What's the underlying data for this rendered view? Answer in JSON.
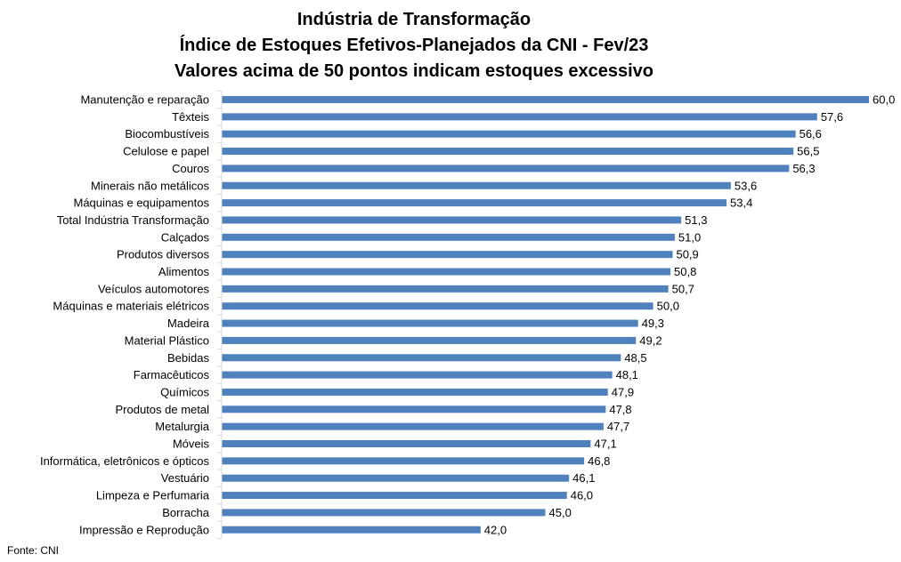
{
  "chart_data": {
    "type": "bar",
    "orientation": "horizontal",
    "title": [
      "Indústria de Transformação",
      "Índice de Estoques Efetivos-Planejados da CNI - Fev/23",
      "Valores acima de 50 pontos indicam estoques excessivo"
    ],
    "categories": [
      "Manutenção e reparação",
      "Têxteis",
      "Biocombustíveis",
      "Celulose e papel",
      "Couros",
      "Minerais não metálicos",
      "Máquinas e equipamentos",
      "Total Indústria Transformação",
      "Calçados",
      "Produtos diversos",
      "Alimentos",
      "Veículos automotores",
      "Máquinas e materiais elétricos",
      "Madeira",
      "Material Plástico",
      "Bebidas",
      "Farmacêuticos",
      "Químicos",
      "Produtos de metal",
      "Metalurgia",
      "Móveis",
      "Informática, eletrônicos e ópticos",
      "Vestuário",
      "Limpeza e Perfumaria",
      "Borracha",
      "Impressão e Reprodução"
    ],
    "values": [
      60.0,
      57.6,
      56.6,
      56.5,
      56.3,
      53.6,
      53.4,
      51.3,
      51.0,
      50.9,
      50.8,
      50.7,
      50.0,
      49.3,
      49.2,
      48.5,
      48.1,
      47.9,
      47.8,
      47.7,
      47.1,
      46.8,
      46.1,
      46.0,
      45.0,
      42.0
    ],
    "labels": [
      "60,0",
      "57,6",
      "56,6",
      "56,5",
      "56,3",
      "53,6",
      "53,4",
      "51,3",
      "51,0",
      "50,9",
      "50,8",
      "50,7",
      "50,0",
      "49,3",
      "49,2",
      "48,5",
      "48,1",
      "47,9",
      "47,8",
      "47,7",
      "47,1",
      "46,8",
      "46,1",
      "46,0",
      "45,0",
      "42,0"
    ],
    "xlim": [
      30,
      60
    ],
    "bar_color": "#4F81BD",
    "grid": false
  },
  "footer": {
    "source": "Fonte: CNI"
  }
}
